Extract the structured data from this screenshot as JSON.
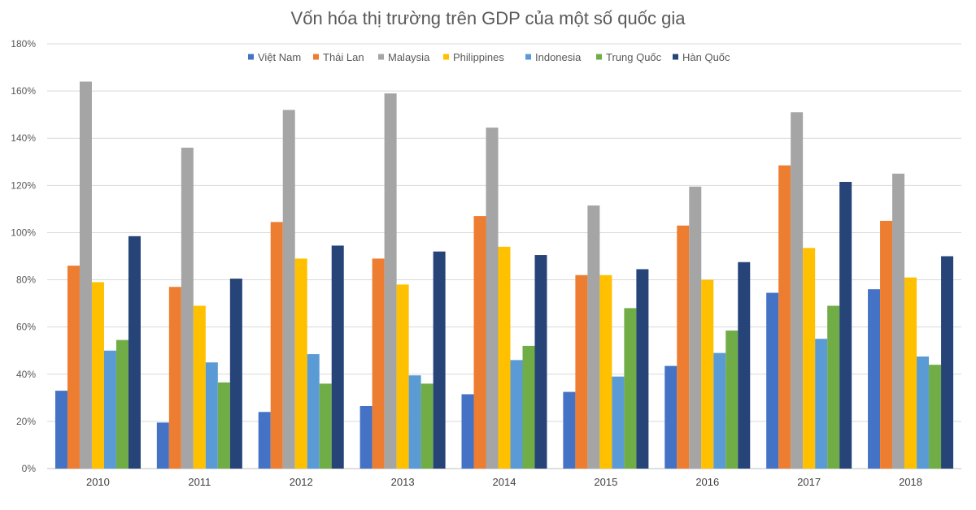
{
  "chart_data": {
    "type": "bar",
    "title": "Vốn hóa thị trường trên GDP của một số quốc gia",
    "xlabel": "",
    "ylabel": "",
    "ylim": [
      0,
      180
    ],
    "y_ticks": [
      0,
      20,
      40,
      60,
      80,
      100,
      120,
      140,
      160,
      180
    ],
    "y_tick_labels": [
      "0%",
      "20%",
      "40%",
      "60%",
      "80%",
      "100%",
      "120%",
      "140%",
      "160%",
      "180%"
    ],
    "grid": true,
    "legend_position": "top-center",
    "categories": [
      "2010",
      "2011",
      "2012",
      "2013",
      "2014",
      "2015",
      "2016",
      "2017",
      "2018"
    ],
    "series": [
      {
        "name": "Việt Nam",
        "color": "#4472c4",
        "values": [
          33,
          19.5,
          24,
          26.5,
          31.5,
          32.5,
          43.5,
          74.5,
          76
        ]
      },
      {
        "name": "Thái Lan",
        "color": "#ed7d31",
        "values": [
          86,
          77,
          104.5,
          89,
          107,
          82,
          103,
          128.5,
          105
        ]
      },
      {
        "name": "Malaysia",
        "color": "#a5a5a5",
        "values": [
          164,
          136,
          152,
          159,
          144.5,
          111.5,
          119.5,
          151,
          125
        ]
      },
      {
        "name": "Philippines",
        "color": "#ffc000",
        "values": [
          79,
          69,
          89,
          78,
          94,
          82,
          80,
          93.5,
          81
        ]
      },
      {
        "name": "Indonesia",
        "color": "#5b9bd5",
        "values": [
          50,
          45,
          48.5,
          39.5,
          46,
          39,
          49,
          55,
          47.5
        ]
      },
      {
        "name": "Trung Quốc",
        "color": "#70ad47",
        "values": [
          54.5,
          36.5,
          36,
          36,
          52,
          68,
          58.5,
          69,
          44
        ]
      },
      {
        "name": "Hàn Quốc",
        "color": "#264478",
        "values": [
          98.5,
          80.5,
          94.5,
          92,
          90.5,
          84.5,
          87.5,
          121.5,
          90
        ]
      }
    ]
  }
}
